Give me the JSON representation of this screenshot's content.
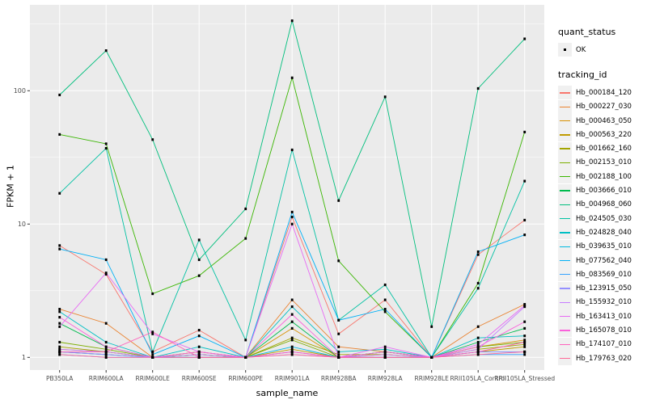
{
  "colors": {
    "panel_background": "#EBEBEB",
    "gridline": "#FFFFFF",
    "tick_label": "#4D4D4D",
    "tick_mark": "#333333",
    "point": "#000000",
    "legend_key_background": "#F0F0F0"
  },
  "legend": {
    "quant_status_title": "quant_status",
    "quant_status_items": [
      "OK"
    ],
    "tracking_id_title": "tracking_id"
  },
  "chart_data": {
    "type": "line",
    "title": "",
    "xlabel": "sample_name",
    "ylabel": "FPKM + 1",
    "y_scale": "log10",
    "y_ticks": [
      1,
      10,
      100
    ],
    "ylim": [
      1,
      440
    ],
    "grid": "on",
    "legend_position": "right",
    "point_shape": "small black square (quant_status OK)",
    "categories": [
      "PB350LA",
      "RRIM600LA",
      "RRIM600LE",
      "RRIM600SE",
      "RRIM600PE",
      "RRIM901LA",
      "RRIM928BA",
      "RRIM928LA",
      "RRIM928LE",
      "RRII105LA_Control",
      "RRII105LA_Stressed"
    ],
    "series": [
      {
        "name": "Hb_000184_120",
        "color": "#F8766D",
        "values": [
          6.9,
          4.2,
          1.1,
          1.6,
          1.0,
          11.3,
          1.5,
          2.7,
          1.0,
          5.9,
          10.7
        ]
      },
      {
        "name": "Hb_000227_030",
        "color": "#EA8331",
        "values": [
          2.3,
          1.8,
          1.0,
          1.1,
          1.0,
          2.7,
          1.2,
          1.1,
          1.0,
          1.7,
          2.5
        ]
      },
      {
        "name": "Hb_000463_050",
        "color": "#D89000",
        "values": [
          1.15,
          1.1,
          1.0,
          1.05,
          1.0,
          1.65,
          1.0,
          1.05,
          1.0,
          1.2,
          1.35
        ]
      },
      {
        "name": "Hb_000563_220",
        "color": "#C09B00",
        "values": [
          1.1,
          1.05,
          1.0,
          1.0,
          1.0,
          1.15,
          1.0,
          1.0,
          1.0,
          1.1,
          1.2
        ]
      },
      {
        "name": "Hb_001662_160",
        "color": "#A3A500",
        "values": [
          1.2,
          1.1,
          1.0,
          1.05,
          1.0,
          1.4,
          1.05,
          1.05,
          1.0,
          1.15,
          1.25
        ]
      },
      {
        "name": "Hb_002153_010",
        "color": "#7CAE00",
        "values": [
          1.3,
          1.15,
          1.0,
          1.1,
          1.0,
          1.35,
          1.0,
          1.1,
          1.0,
          1.2,
          1.3
        ]
      },
      {
        "name": "Hb_002188_100",
        "color": "#39B600",
        "values": [
          47,
          40,
          3.0,
          4.1,
          7.8,
          125,
          5.3,
          2.2,
          1.0,
          3.6,
          49
        ]
      },
      {
        "name": "Hb_003666_010",
        "color": "#00BB4E",
        "values": [
          1.8,
          1.2,
          1.0,
          1.05,
          1.0,
          1.85,
          1.0,
          1.1,
          1.0,
          1.3,
          1.65
        ]
      },
      {
        "name": "Hb_004968_060",
        "color": "#00BF7D",
        "values": [
          93,
          200,
          43,
          5.4,
          13,
          335,
          15,
          90,
          1.7,
          104,
          245
        ]
      },
      {
        "name": "Hb_024505_030",
        "color": "#00C1A3",
        "values": [
          17,
          37,
          1.1,
          7.6,
          1.35,
          36,
          1.9,
          3.5,
          1.0,
          3.3,
          21
        ]
      },
      {
        "name": "Hb_024828_040",
        "color": "#00BFC4",
        "values": [
          2.2,
          1.3,
          1.0,
          1.2,
          1.0,
          2.4,
          1.1,
          1.15,
          1.0,
          1.4,
          1.45
        ]
      },
      {
        "name": "Hb_039635_010",
        "color": "#00BAE0",
        "values": [
          1.1,
          1.05,
          1.0,
          1.0,
          1.0,
          1.2,
          1.0,
          1.0,
          1.0,
          1.1,
          1.1
        ]
      },
      {
        "name": "Hb_077562_040",
        "color": "#00B0F6",
        "values": [
          6.5,
          5.4,
          1.05,
          1.45,
          1.0,
          12.3,
          1.9,
          2.3,
          1.0,
          6.2,
          8.3
        ]
      },
      {
        "name": "Hb_083569_010",
        "color": "#35A2FF",
        "values": [
          1.05,
          1.0,
          1.0,
          1.0,
          1.0,
          1.1,
          1.0,
          1.0,
          1.0,
          1.05,
          1.05
        ]
      },
      {
        "name": "Hb_123915_050",
        "color": "#9590FF",
        "values": [
          1.1,
          1.05,
          1.0,
          1.0,
          1.0,
          1.05,
          1.0,
          1.0,
          1.0,
          1.1,
          1.1
        ]
      },
      {
        "name": "Hb_155932_010",
        "color": "#C77CFF",
        "values": [
          1.15,
          1.1,
          1.0,
          1.05,
          1.0,
          1.1,
          1.0,
          1.05,
          1.0,
          1.15,
          2.4
        ]
      },
      {
        "name": "Hb_163413_010",
        "color": "#E76BF3",
        "values": [
          1.7,
          4.3,
          1.5,
          1.1,
          1.0,
          10.0,
          1.0,
          1.2,
          1.0,
          1.25,
          2.45
        ]
      },
      {
        "name": "Hb_165078_010",
        "color": "#FA62DB",
        "values": [
          2.0,
          1.2,
          1.0,
          1.1,
          1.0,
          2.1,
          1.0,
          1.1,
          1.0,
          1.2,
          1.85
        ]
      },
      {
        "name": "Hb_174107_010",
        "color": "#FF62BC",
        "values": [
          1.1,
          1.1,
          1.55,
          1.0,
          1.0,
          1.1,
          1.0,
          1.0,
          1.0,
          1.1,
          1.3
        ]
      },
      {
        "name": "Hb_179763_020",
        "color": "#FF6A98",
        "values": [
          1.05,
          1.0,
          1.0,
          1.0,
          1.0,
          1.05,
          1.0,
          1.0,
          1.0,
          1.05,
          1.1
        ]
      }
    ]
  }
}
